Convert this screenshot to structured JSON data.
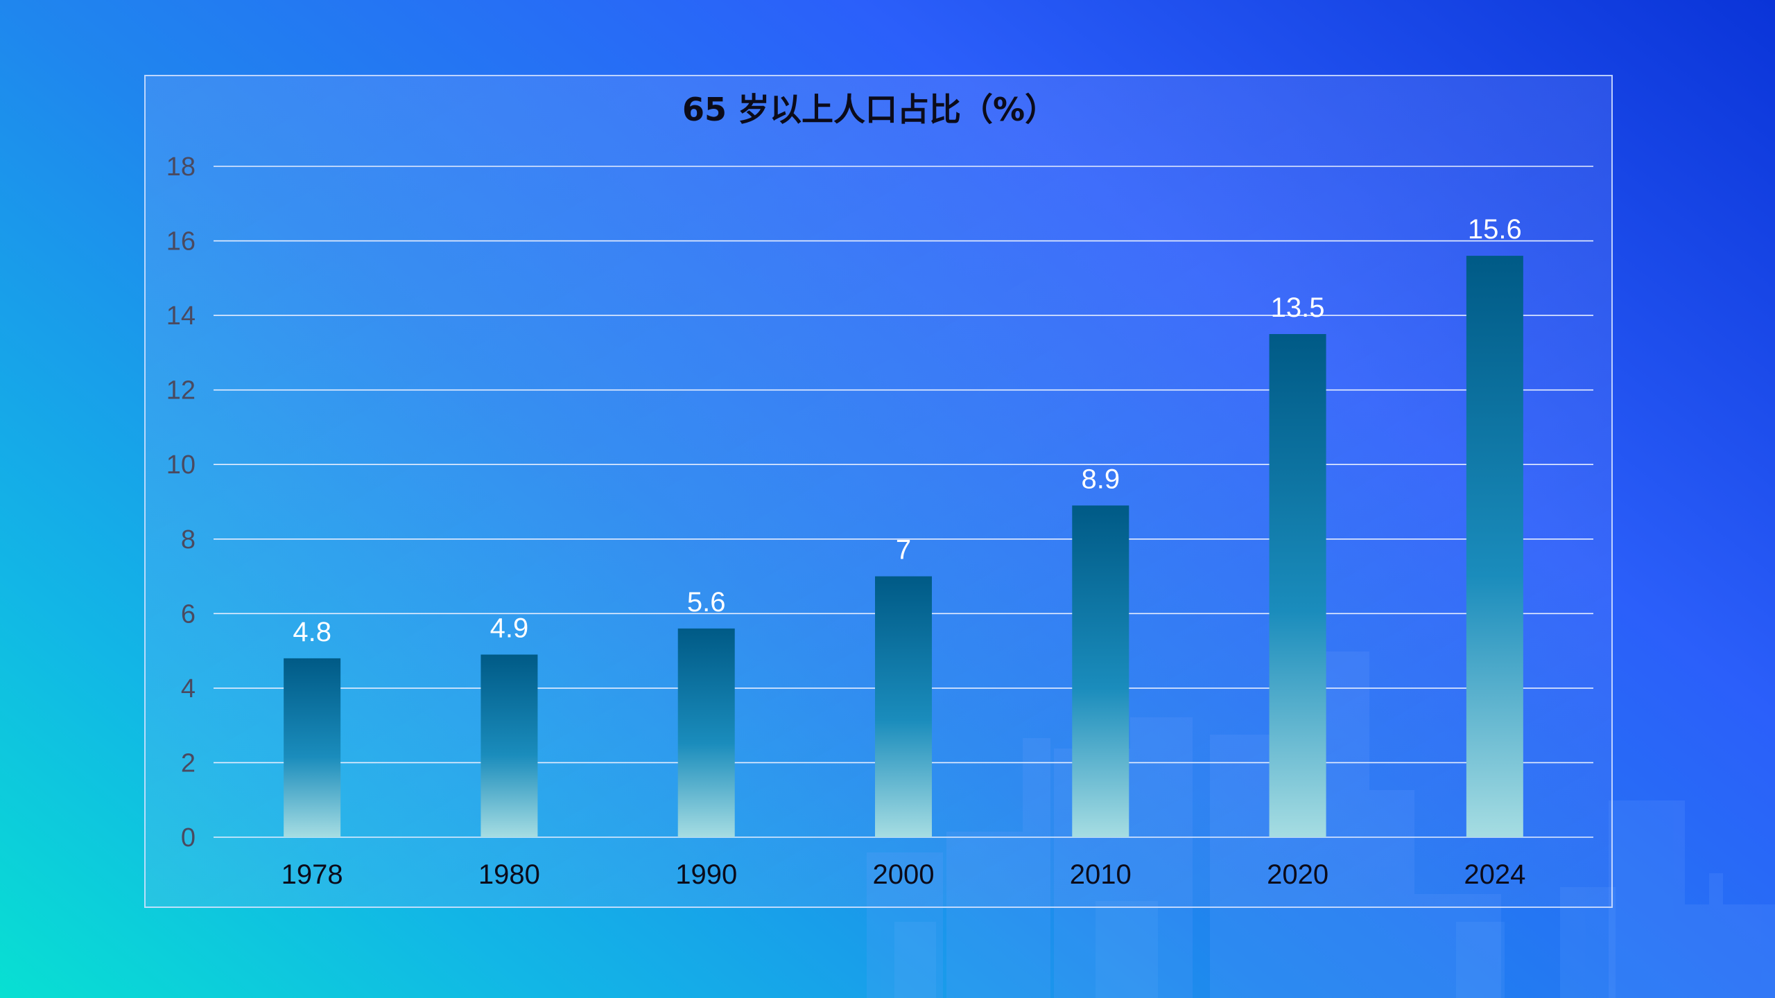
{
  "chart_data": {
    "type": "bar",
    "title": "65 岁以上人口占比（%）",
    "categories": [
      "1978",
      "1980",
      "1990",
      "2000",
      "2010",
      "2020",
      "2024"
    ],
    "values": [
      4.8,
      4.9,
      5.6,
      7,
      8.9,
      13.5,
      15.6
    ],
    "data_labels": [
      "4.8",
      "4.9",
      "5.6",
      "7",
      "8.9",
      "13.5",
      "15.6"
    ],
    "y_ticks": [
      "0",
      "2",
      "4",
      "6",
      "8",
      "10",
      "12",
      "14",
      "16",
      "18"
    ],
    "ylim": [
      0,
      18
    ],
    "xlabel": "",
    "ylabel": "",
    "grid": true,
    "legend": "none",
    "colors": {
      "bar_top": "#005a86",
      "bar_mid": "#1a8cbc",
      "bar_bottom": "#a6dde2",
      "gridline": "#e6eeff",
      "data_label": "#ffffff"
    }
  }
}
